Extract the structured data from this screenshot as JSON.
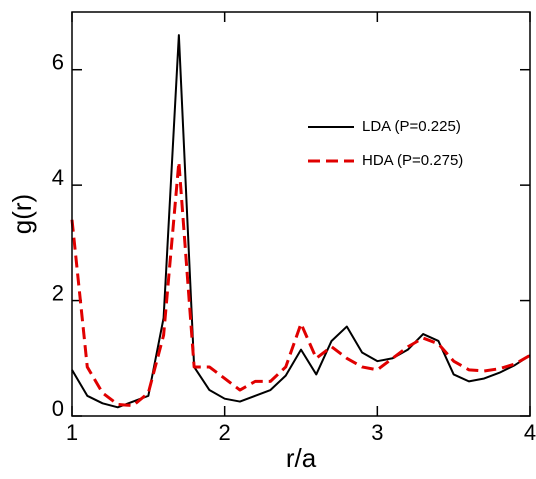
{
  "chart_data": {
    "type": "line",
    "x_label": "r/a",
    "y_label": "g(r)",
    "x": [
      1.0,
      1.1,
      1.2,
      1.3,
      1.4,
      1.5,
      1.6,
      1.7,
      1.8,
      1.9,
      2.0,
      2.1,
      2.2,
      2.3,
      2.4,
      2.5,
      2.6,
      2.7,
      2.8,
      2.9,
      3.0,
      3.1,
      3.2,
      3.3,
      3.4,
      3.5,
      3.6,
      3.7,
      3.8,
      3.9,
      4.0
    ],
    "series": [
      {
        "name": "LDA (P=0.225)",
        "color": "#000000",
        "dash": false,
        "values": [
          0.8,
          0.35,
          0.22,
          0.15,
          0.25,
          0.35,
          1.7,
          6.6,
          0.85,
          0.45,
          0.3,
          0.25,
          0.35,
          0.45,
          0.7,
          1.15,
          0.72,
          1.3,
          1.55,
          1.1,
          0.95,
          1.0,
          1.15,
          1.42,
          1.3,
          0.72,
          0.6,
          0.65,
          0.75,
          0.88,
          1.05
        ]
      },
      {
        "name": "HDA (P=0.275)",
        "color": "#e00000",
        "dash": true,
        "values": [
          3.4,
          0.85,
          0.4,
          0.2,
          0.18,
          0.4,
          1.4,
          4.4,
          0.85,
          0.85,
          0.65,
          0.45,
          0.6,
          0.6,
          0.85,
          1.6,
          1.0,
          1.2,
          1.0,
          0.85,
          0.8,
          1.0,
          1.2,
          1.35,
          1.25,
          0.95,
          0.8,
          0.78,
          0.82,
          0.9,
          1.05
        ]
      }
    ],
    "xlim": [
      1,
      4
    ],
    "ylim": [
      0,
      7
    ],
    "xticks": [
      1,
      2,
      3,
      4
    ],
    "yticks": [
      0,
      2,
      4,
      6
    ],
    "legend": "upper right",
    "grid": false
  }
}
